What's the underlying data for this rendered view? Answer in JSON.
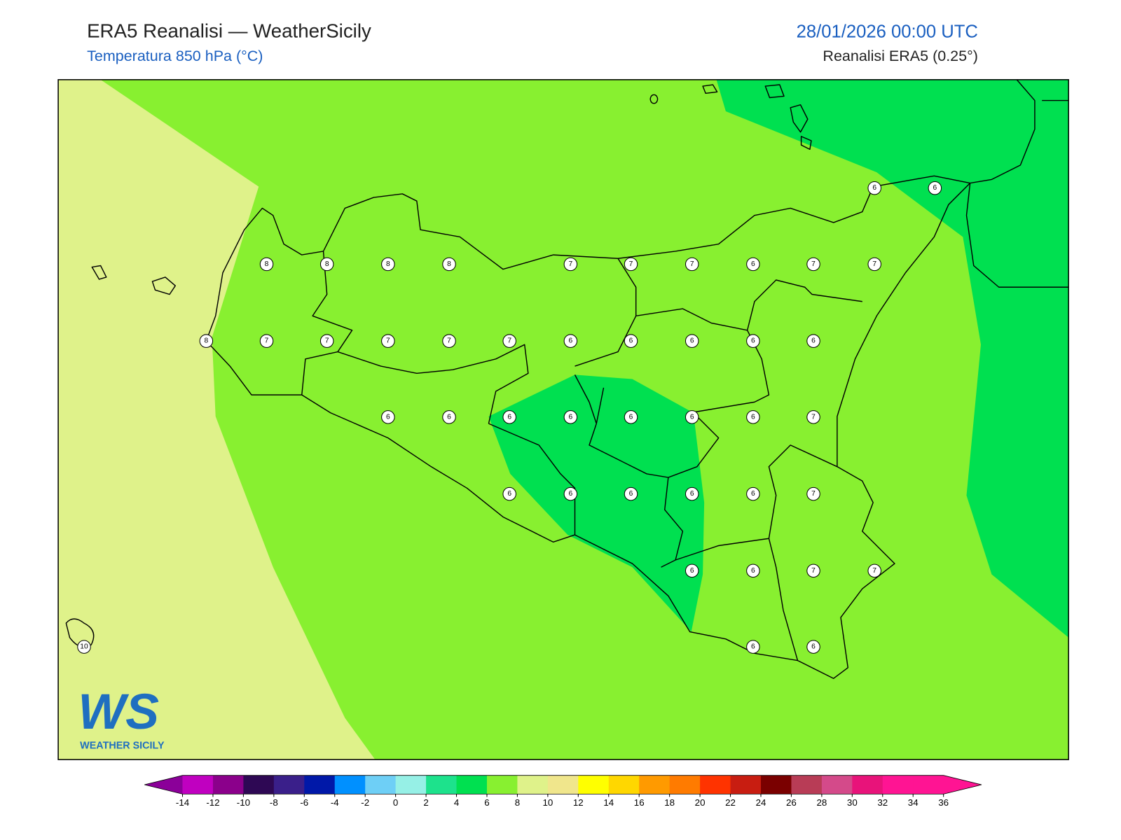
{
  "header": {
    "title": "ERA5 Reanalisi — WeatherSicily",
    "subtitle": "Temperatura 850 hPa (°C)",
    "valid_time": "28/01/2026 00:00 UTC",
    "source": "Reanalisi ERA5 (0.25°)"
  },
  "map": {
    "stations": [
      6,
      6,
      8,
      8,
      8,
      8,
      7,
      7,
      7,
      6,
      7,
      7,
      8,
      7,
      7,
      7,
      7,
      7,
      6,
      6,
      6,
      6,
      6,
      6,
      6,
      6,
      6,
      6,
      6,
      6,
      7,
      6,
      6,
      6,
      6,
      6,
      7,
      6,
      6,
      7,
      7,
      10,
      6,
      6
    ]
  },
  "colorbar": {
    "ticks": [
      -14,
      -12,
      -10,
      -8,
      -6,
      -4,
      -2,
      0,
      2,
      4,
      6,
      8,
      10,
      12,
      14,
      16,
      18,
      20,
      22,
      24,
      26,
      28,
      30,
      32,
      34,
      36
    ],
    "under_color": "#8b0099",
    "over_color": "#ff1493",
    "colors": [
      "#c000c0",
      "#8b008b",
      "#2e0854",
      "#3a1f8a",
      "#0018a8",
      "#0090ff",
      "#6ecff6",
      "#96f0e6",
      "#1de28c",
      "#00e050",
      "#88f030",
      "#dff28a",
      "#f0e68c",
      "#ffff00",
      "#ffd700",
      "#ff9a00",
      "#ff7b00",
      "#ff3300",
      "#c81d11",
      "#7a0000",
      "#b83c56",
      "#d44a8a",
      "#e8137a",
      "#ff1493",
      "#ff1493"
    ]
  },
  "logo": {
    "mark": "WS",
    "name": "WEATHER SICILY"
  }
}
